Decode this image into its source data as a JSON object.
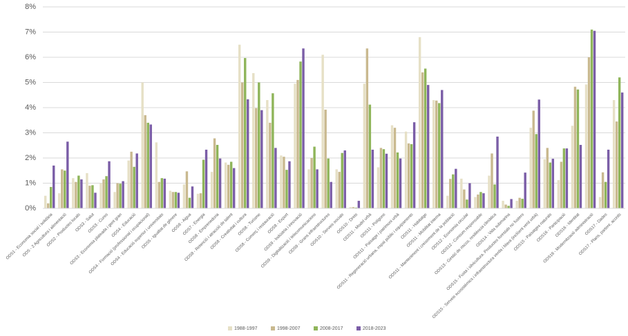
{
  "chart_data": {
    "type": "bar",
    "categories": [
      "ODS1 - Economia social i solidària",
      "ODS - 2 Agricultura i alimentació",
      "ODS2 - Productes locals",
      "ODS3 - Salut",
      "ODS3 - Cures",
      "ODS3 - Economia plateada i gent gran",
      "ODS4 - Educació",
      "ODS4 - Formació (professional i ocupacional)",
      "ODS4 - Educació superior i universitats",
      "ODS5 - Igualtat de gènere",
      "ODS6 - Aigua",
      "ODS7 - Energia",
      "ODS8 - Emprenedoria",
      "ODS8 - Retenció i atracció de talent",
      "ODS8 - Creativitat i cultura",
      "ODS8 - Turisme",
      "ODS8 - Comerç i restauració",
      "ODS8 - Export",
      "ODS9 - Indústria i innovació",
      "ODS9 - Digitalització i telecomunicacions",
      "ODS9 - Grans infraestructures",
      "ODS10 - Serveis socials",
      "ODS10 - Drets",
      "ODS11 - Model urbà",
      "ODS11 - Polígons",
      "ODS11 - Paisatge i patrimoni urbà",
      "ODS11 - Regeneració urbana, espai públic i equipaments",
      "ODS11 - Habitatge",
      "ODS11 - Mobilitat interna",
      "ODS11 - Manteniment i creixement de la població",
      "ODS12 - Economia circular",
      "ODS12 - Consum responsable",
      "ODS13 - Gestió de riscos, resiliència climàtica",
      "ODS14 - Vida submarina",
      "ODS15 - Fusta i silvicultura. Productes forestals no fusters",
      "ODS15 - Serveis ecosistèmics i infraestructura verda i blava (inclòent verd urbà)",
      "ODS15 - Paisatges naturals",
      "ODS16 - Participació",
      "ODS16 - Identitat",
      "ODS16 - Modernització administració",
      "ODS17 - Dades",
      "ODS17 - Plans, partenr, acords"
    ],
    "series": [
      {
        "name": "1988-1997",
        "color": "#e6e0c6",
        "values": [
          0.5,
          0.6,
          1.2,
          1.4,
          1.0,
          0.65,
          1.9,
          5.0,
          2.62,
          0.7,
          0.95,
          0.58,
          1.45,
          1.82,
          6.5,
          5.37,
          4.3,
          2.1,
          4.95,
          1.55,
          6.1,
          1.55,
          0.05,
          4.95,
          1.63,
          3.3,
          3.05,
          6.8,
          4.3,
          0.5,
          1.18,
          0.45,
          1.3,
          0.3,
          0.3,
          3.2,
          1.95,
          1.12,
          3.28,
          4.92,
          0.45,
          4.3
        ]
      },
      {
        "name": "1998-2007",
        "color": "#c9b98f",
        "values": [
          0.2,
          1.55,
          1.05,
          0.9,
          1.15,
          1.0,
          2.25,
          3.7,
          1.05,
          0.65,
          1.47,
          0.6,
          2.78,
          1.73,
          5.0,
          3.98,
          3.4,
          2.05,
          5.1,
          2.0,
          3.92,
          1.45,
          0.05,
          6.35,
          2.4,
          3.2,
          2.58,
          5.4,
          4.28,
          1.17,
          0.75,
          0.55,
          2.18,
          0.15,
          0.42,
          3.88,
          2.4,
          1.85,
          4.83,
          6.0,
          1.43,
          3.45
        ]
      },
      {
        "name": "2008-2017",
        "color": "#8fb55a",
        "values": [
          0.85,
          1.5,
          1.3,
          0.92,
          1.28,
          0.98,
          1.65,
          3.4,
          1.2,
          0.65,
          0.42,
          1.93,
          2.52,
          1.85,
          5.97,
          5.0,
          4.57,
          1.53,
          5.83,
          2.45,
          1.98,
          2.2,
          0.03,
          4.12,
          2.35,
          2.22,
          2.55,
          5.55,
          4.18,
          1.35,
          0.35,
          0.65,
          0.95,
          0.1,
          0.38,
          2.95,
          1.82,
          2.38,
          4.72,
          7.1,
          1.05,
          5.2
        ]
      },
      {
        "name": "2018-2023",
        "color": "#7b5ea7",
        "values": [
          1.7,
          2.65,
          1.15,
          0.62,
          1.87,
          1.08,
          2.18,
          3.33,
          1.18,
          0.62,
          0.87,
          2.33,
          1.98,
          1.6,
          4.33,
          3.9,
          2.4,
          1.87,
          6.35,
          1.55,
          1.05,
          2.3,
          0.3,
          2.33,
          2.17,
          1.98,
          3.42,
          4.9,
          4.7,
          1.57,
          1.0,
          0.6,
          2.85,
          0.37,
          1.42,
          4.32,
          1.97,
          2.38,
          2.52,
          7.05,
          2.33,
          4.6
        ]
      }
    ],
    "ylim": [
      0,
      8
    ],
    "yticks": [
      {
        "value": 0,
        "label": "0%"
      },
      {
        "value": 1,
        "label": "1%"
      },
      {
        "value": 2,
        "label": "2%"
      },
      {
        "value": 3,
        "label": "3%"
      },
      {
        "value": 4,
        "label": "4%"
      },
      {
        "value": 5,
        "label": "5%"
      },
      {
        "value": 6,
        "label": "6%"
      },
      {
        "value": 7,
        "label": "7%"
      },
      {
        "value": 8,
        "label": "8%"
      }
    ],
    "grid": true,
    "legend": "bottom"
  }
}
